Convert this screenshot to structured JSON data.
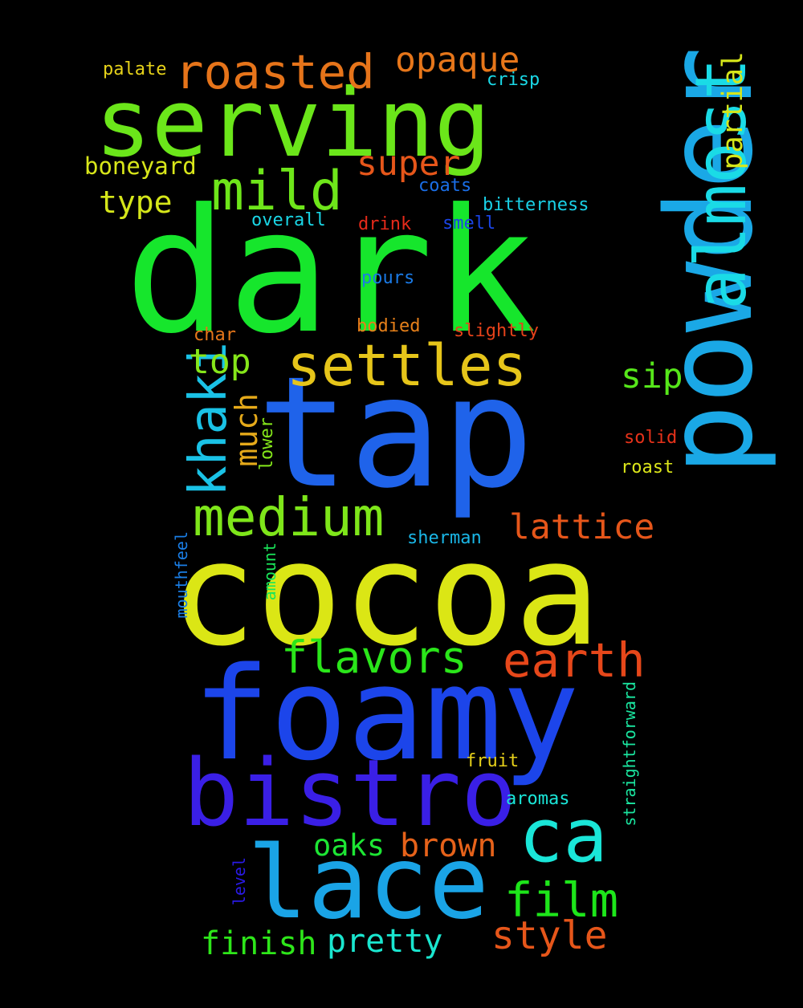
{
  "words": [
    {
      "text": "dark",
      "color": "#16e62c"
    },
    {
      "text": "tap",
      "color": "#1f63ea"
    },
    {
      "text": "cocoa",
      "color": "#dbe615"
    },
    {
      "text": "foamy",
      "color": "#1c45ea"
    },
    {
      "text": "powder",
      "color": "#1aa8e6"
    },
    {
      "text": "serving",
      "color": "#6be61a"
    },
    {
      "text": "bistro",
      "color": "#3a1fe6"
    },
    {
      "text": "lace",
      "color": "#1aa4e6"
    },
    {
      "text": "almost",
      "color": "#1adbe6"
    },
    {
      "text": "ca",
      "color": "#1ae6d8"
    },
    {
      "text": "settles",
      "color": "#e6c51a"
    },
    {
      "text": "roasted",
      "color": "#e6741a"
    },
    {
      "text": "mild",
      "color": "#6ee61a"
    },
    {
      "text": "medium",
      "color": "#7ee61a"
    },
    {
      "text": "khaki",
      "color": "#1ac2e6"
    },
    {
      "text": "earth",
      "color": "#e6471a"
    },
    {
      "text": "flavors",
      "color": "#2ae61a"
    },
    {
      "text": "film",
      "color": "#1de61a"
    },
    {
      "text": "style",
      "color": "#e6561a"
    },
    {
      "text": "brown",
      "color": "#e6621a"
    },
    {
      "text": "pretty",
      "color": "#1ae6cf"
    },
    {
      "text": "finish",
      "color": "#2ee61a"
    },
    {
      "text": "oaks",
      "color": "#1de634"
    },
    {
      "text": "opaque",
      "color": "#e6761a"
    },
    {
      "text": "super",
      "color": "#e6561a"
    },
    {
      "text": "lattice",
      "color": "#e6561a"
    },
    {
      "text": "top",
      "color": "#86e61a"
    },
    {
      "text": "sip",
      "color": "#56e61a"
    },
    {
      "text": "much",
      "color": "#e6aa1a"
    },
    {
      "text": "type",
      "color": "#d5e61a"
    },
    {
      "text": "partial",
      "color": "#d6e61a"
    },
    {
      "text": "boneyard",
      "color": "#d8e61a"
    },
    {
      "text": "palate",
      "color": "#e6d21a"
    },
    {
      "text": "crisp",
      "color": "#1ad8e6"
    },
    {
      "text": "coats",
      "color": "#1a6ee6"
    },
    {
      "text": "bitterness",
      "color": "#1ad0e6"
    },
    {
      "text": "overall",
      "color": "#1ad6e6"
    },
    {
      "text": "drink",
      "color": "#e62a1a"
    },
    {
      "text": "smell",
      "color": "#1a44e6"
    },
    {
      "text": "pours",
      "color": "#1a7ae6"
    },
    {
      "text": "bodied",
      "color": "#e6801a"
    },
    {
      "text": "char",
      "color": "#e6761a"
    },
    {
      "text": "slightly",
      "color": "#e6421a"
    },
    {
      "text": "solid",
      "color": "#e6321a"
    },
    {
      "text": "roast",
      "color": "#dce61a"
    },
    {
      "text": "lower",
      "color": "#84e61a"
    },
    {
      "text": "sherman",
      "color": "#1ab6e6"
    },
    {
      "text": "amount",
      "color": "#1ae65a"
    },
    {
      "text": "mouthfeel",
      "color": "#1a7ee6"
    },
    {
      "text": "straightforward",
      "color": "#1ae6a0"
    },
    {
      "text": "fruit",
      "color": "#e6d01a"
    },
    {
      "text": "aromas",
      "color": "#1ae6d8"
    },
    {
      "text": "level",
      "color": "#2a1ae6"
    }
  ]
}
